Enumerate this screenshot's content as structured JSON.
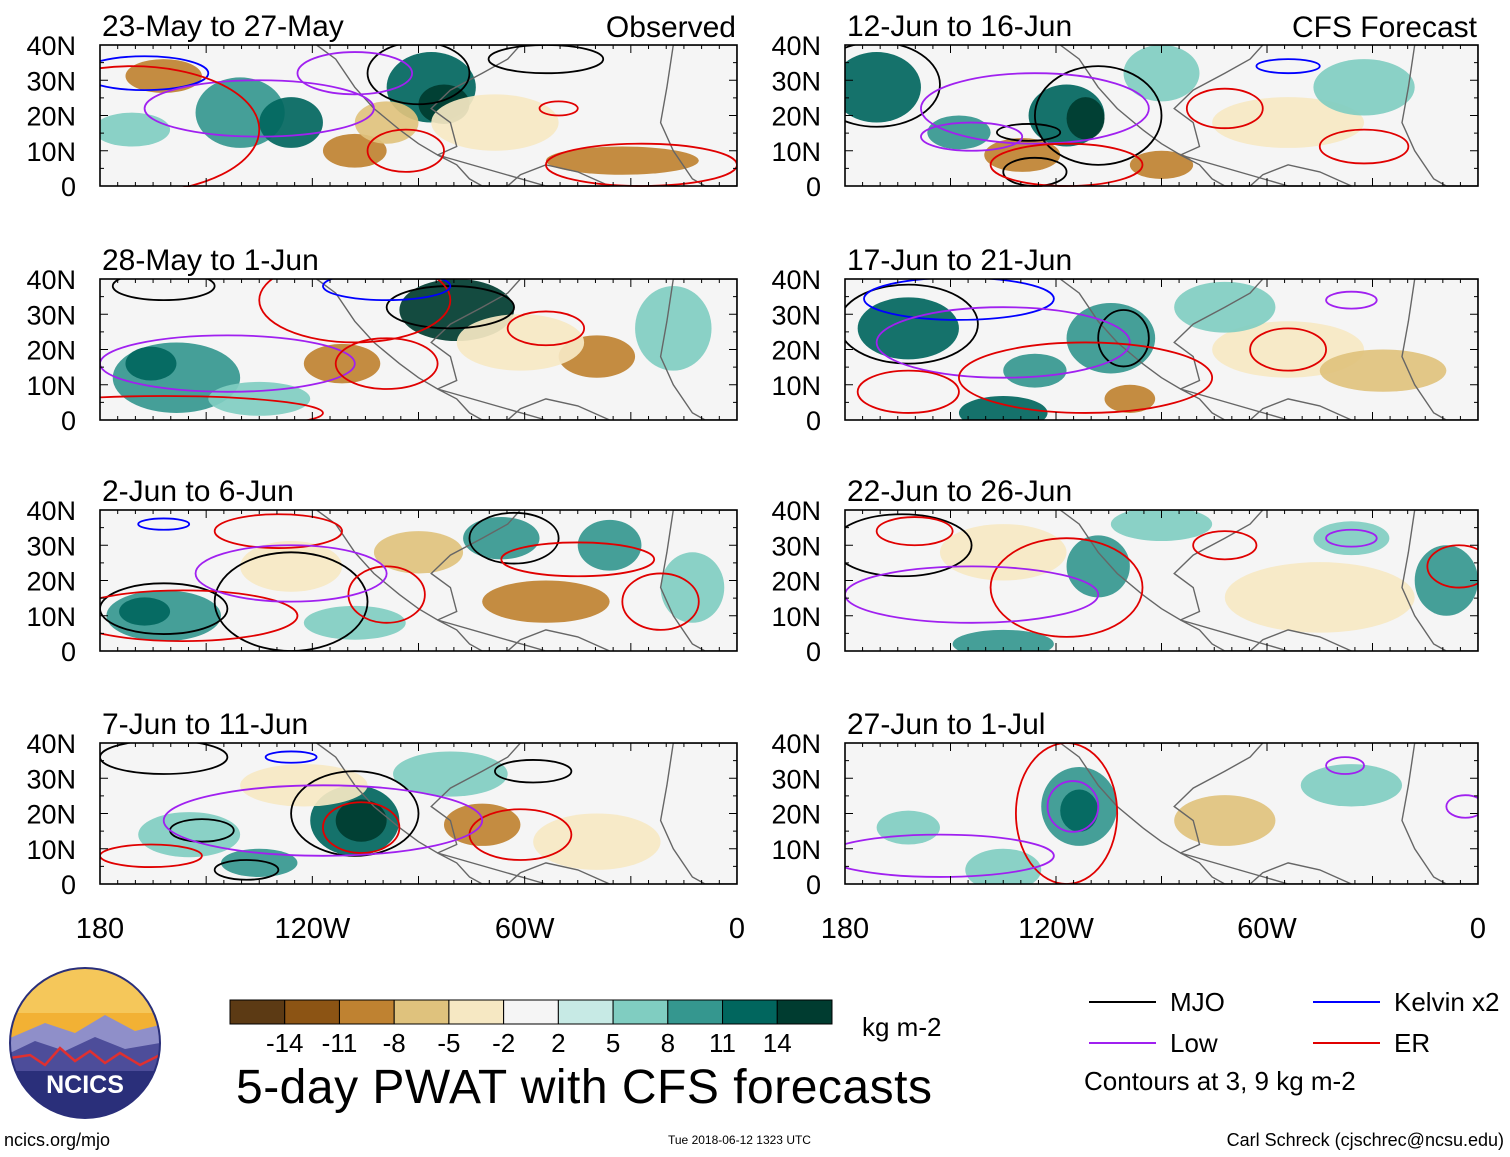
{
  "figure_title": "5-day PWAT with CFS forecasts",
  "footer": {
    "left": "ncics.org/mjo",
    "center": "Tue 2018-06-12 1323 UTC",
    "right": "Carl Schreck (cjschrec@ncsu.edu)"
  },
  "logo": {
    "text": "NCICS"
  },
  "headers": {
    "observed": "Observed",
    "forecast": "CFS Forecast"
  },
  "lat_labels": [
    "40N",
    "30N",
    "20N",
    "10N",
    "0"
  ],
  "lon_labels": [
    "180",
    "120W",
    "60W",
    "0"
  ],
  "panels": [
    {
      "title": "23-May to 27-May",
      "type": "Observed"
    },
    {
      "title": "28-May to 1-Jun",
      "type": "Observed"
    },
    {
      "title": "2-Jun to 6-Jun",
      "type": "Observed"
    },
    {
      "title": "7-Jun to 11-Jun",
      "type": "Observed"
    },
    {
      "title": "12-Jun to 16-Jun",
      "type": "CFS Forecast"
    },
    {
      "title": "17-Jun to 21-Jun",
      "type": "CFS Forecast"
    },
    {
      "title": "22-Jun to 26-Jun",
      "type": "CFS Forecast"
    },
    {
      "title": "27-Jun to 1-Jul",
      "type": "CFS Forecast"
    }
  ],
  "colorbar": {
    "units": "kg m-2",
    "labels": [
      "-14",
      "-11",
      "-8",
      "-5",
      "-2",
      "2",
      "5",
      "8",
      "11",
      "14"
    ],
    "colors": [
      "#5c3a14",
      "#8c5414",
      "#bf8231",
      "#dfc27d",
      "#f6e8c3",
      "#f5f5f5",
      "#c7eae5",
      "#80cdc1",
      "#35978f",
      "#01665e",
      "#003c30"
    ]
  },
  "legend": {
    "items": [
      {
        "label": "MJO",
        "color": "#000000"
      },
      {
        "label": "Kelvin x2",
        "color": "#0000ff"
      },
      {
        "label": "Low",
        "color": "#a020f0"
      },
      {
        "label": "ER",
        "color": "#e00000"
      }
    ],
    "note": "Contours at 3, 9 kg m-2"
  }
}
